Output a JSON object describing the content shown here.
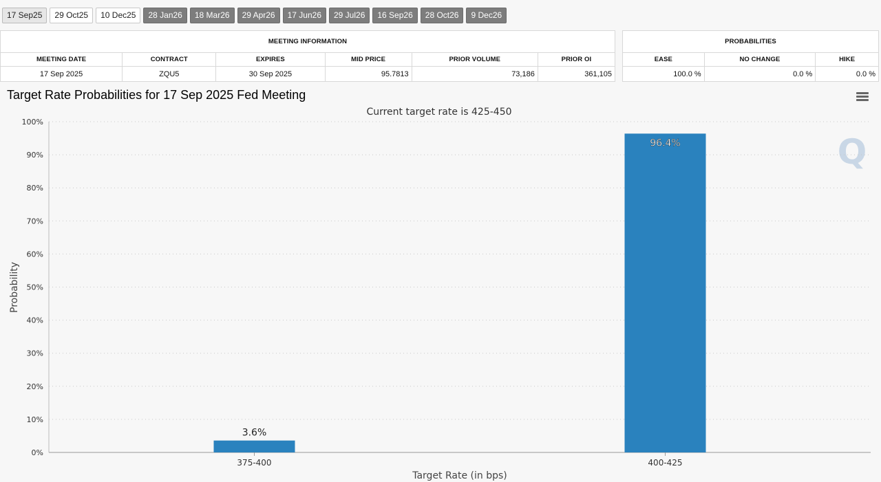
{
  "tabs": [
    {
      "label": "17 Sep25",
      "state": "active"
    },
    {
      "label": "29 Oct25",
      "state": "light"
    },
    {
      "label": "10 Dec25",
      "state": "light"
    },
    {
      "label": "28 Jan26",
      "state": "dark"
    },
    {
      "label": "18 Mar26",
      "state": "dark"
    },
    {
      "label": "29 Apr26",
      "state": "dark"
    },
    {
      "label": "17 Jun26",
      "state": "dark"
    },
    {
      "label": "29 Jul26",
      "state": "dark"
    },
    {
      "label": "16 Sep26",
      "state": "dark"
    },
    {
      "label": "28 Oct26",
      "state": "dark"
    },
    {
      "label": "9 Dec26",
      "state": "dark"
    }
  ],
  "meeting_info": {
    "title": "MEETING INFORMATION",
    "headers": {
      "meeting_date": "MEETING DATE",
      "contract": "CONTRACT",
      "expires": "EXPIRES",
      "mid_price": "MID PRICE",
      "prior_volume": "PRIOR VOLUME",
      "prior_oi": "PRIOR OI"
    },
    "values": {
      "meeting_date": "17 Sep 2025",
      "contract": "ZQU5",
      "expires": "30 Sep 2025",
      "mid_price": "95.7813",
      "prior_volume": "73,186",
      "prior_oi": "361,105"
    }
  },
  "probabilities": {
    "title": "PROBABILITIES",
    "headers": {
      "ease": "EASE",
      "no_change": "NO CHANGE",
      "hike": "HIKE"
    },
    "values": {
      "ease": "100.0 %",
      "no_change": "0.0 %",
      "hike": "0.0 %"
    }
  },
  "chart_title": "Target Rate Probabilities for 17 Sep 2025 Fed Meeting",
  "menu_icon": "hamburger-menu-icon",
  "chart_data": {
    "type": "bar",
    "subtitle": "Current target rate is 425-450",
    "categories": [
      "375-400",
      "400-425"
    ],
    "values": [
      3.6,
      96.4
    ],
    "data_labels": [
      "3.6%",
      "96.4%"
    ],
    "xlabel": "Target Rate (in bps)",
    "ylabel": "Probability",
    "ylim": [
      0,
      100
    ],
    "yticks": [
      "0%",
      "10%",
      "20%",
      "30%",
      "40%",
      "50%",
      "60%",
      "70%",
      "80%",
      "90%",
      "100%"
    ],
    "grid": true,
    "bar_color": "#2a82be",
    "watermark": "Q"
  }
}
